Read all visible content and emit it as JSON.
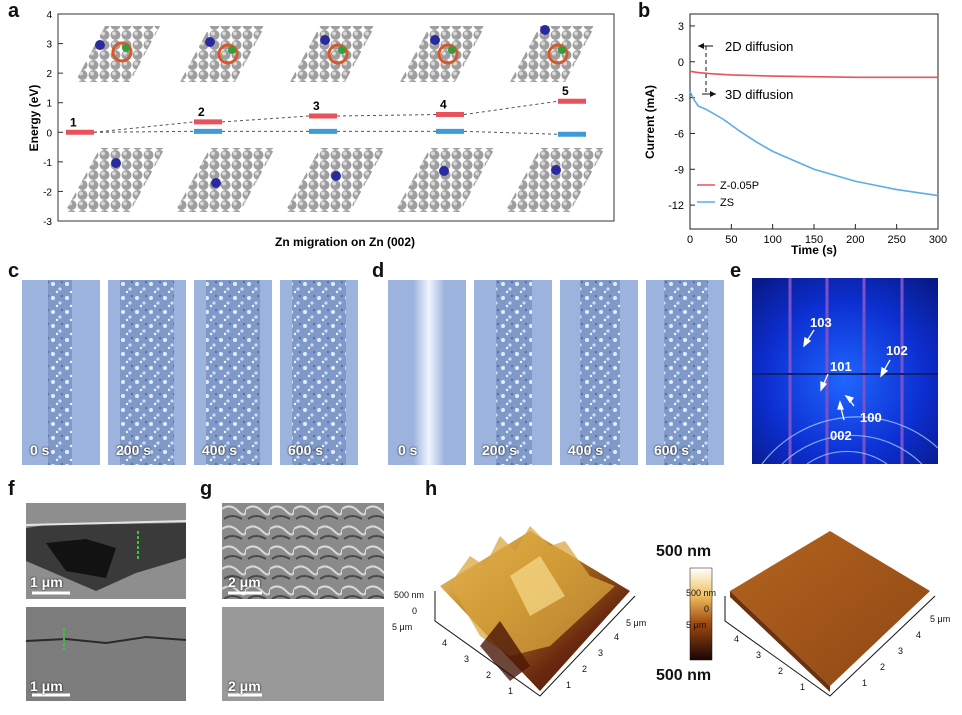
{
  "panel_labels": [
    "a",
    "b",
    "c",
    "d",
    "e",
    "f",
    "g",
    "h"
  ],
  "panel_a": {
    "ylabel": "Energy (eV)",
    "ticks": [
      "4",
      "3",
      "2",
      "1",
      "0",
      "-1",
      "-2",
      "-3"
    ],
    "xlabel": "Zn migration on Zn (002)",
    "state_numbers": [
      "1",
      "2",
      "3",
      "4",
      "5"
    ],
    "red_levels": [
      0,
      0.35,
      0.55,
      0.6,
      1.05
    ],
    "blue_levels": [
      0,
      0.1,
      0.1,
      0.1,
      0
    ],
    "red_color": "#e9525a",
    "blue_color": "#3e9bd7"
  },
  "chart_data": {
    "type": "line",
    "title": "",
    "xlabel": "Time (s)",
    "ylabel": "Current (mA)",
    "xlim": [
      0,
      300
    ],
    "ylim": [
      -14,
      4
    ],
    "xticks": [
      "0",
      "50",
      "100",
      "150",
      "200",
      "250",
      "300"
    ],
    "yticks": [
      "3",
      "0",
      "-3",
      "-6",
      "-9",
      "-12"
    ],
    "annotations": [
      "2D diffusion",
      "3D diffusion"
    ],
    "series": [
      {
        "name": "Z-0.05P",
        "color": "#e9525a",
        "x": [
          0,
          10,
          25,
          50,
          100,
          150,
          200,
          250,
          300
        ],
        "y": [
          -0.8,
          -0.9,
          -1.0,
          -1.1,
          -1.2,
          -1.25,
          -1.3,
          -1.3,
          -1.3
        ]
      },
      {
        "name": "ZS",
        "color": "#5aaee6",
        "x": [
          0,
          5,
          10,
          20,
          40,
          60,
          80,
          100,
          150,
          200,
          250,
          300
        ],
        "y": [
          -2.5,
          -3.2,
          -3.7,
          -4.0,
          -4.8,
          -5.8,
          -6.7,
          -7.5,
          -9.0,
          -10.0,
          -10.7,
          -11.2
        ]
      }
    ]
  },
  "panel_c": {
    "times": [
      "0 s",
      "200 s",
      "400 s",
      "600 s"
    ]
  },
  "panel_d": {
    "times": [
      "0 s",
      "200 s",
      "400 s",
      "600 s"
    ]
  },
  "panel_e": {
    "labels": [
      "103",
      "101",
      "102",
      "100",
      "002"
    ]
  },
  "panel_f": {
    "scale_top": "1 μm",
    "scale_bottom": "1 μm"
  },
  "panel_g": {
    "scale_top": "2 μm",
    "scale_bottom": "2 μm"
  },
  "panel_h": {
    "colorbar_top": "500 nm",
    "colorbar_bottom": "500 nm",
    "left_z_top": "500 nm",
    "left_z_zero": "0",
    "left_axis_unit_left": "5 μm",
    "left_axis_unit_right": "5 μm",
    "left_ticks_a": [
      "4",
      "3",
      "2",
      "1"
    ],
    "left_ticks_b": [
      "4",
      "3",
      "2",
      "1"
    ],
    "right_z_top": "500 nm",
    "right_z_zero": "0",
    "right_axis_unit_left": "5 μm",
    "right_axis_unit_right": "5 μm",
    "right_ticks_a": [
      "4",
      "3",
      "2",
      "1"
    ],
    "right_ticks_b": [
      "4",
      "3",
      "2",
      "1"
    ]
  }
}
